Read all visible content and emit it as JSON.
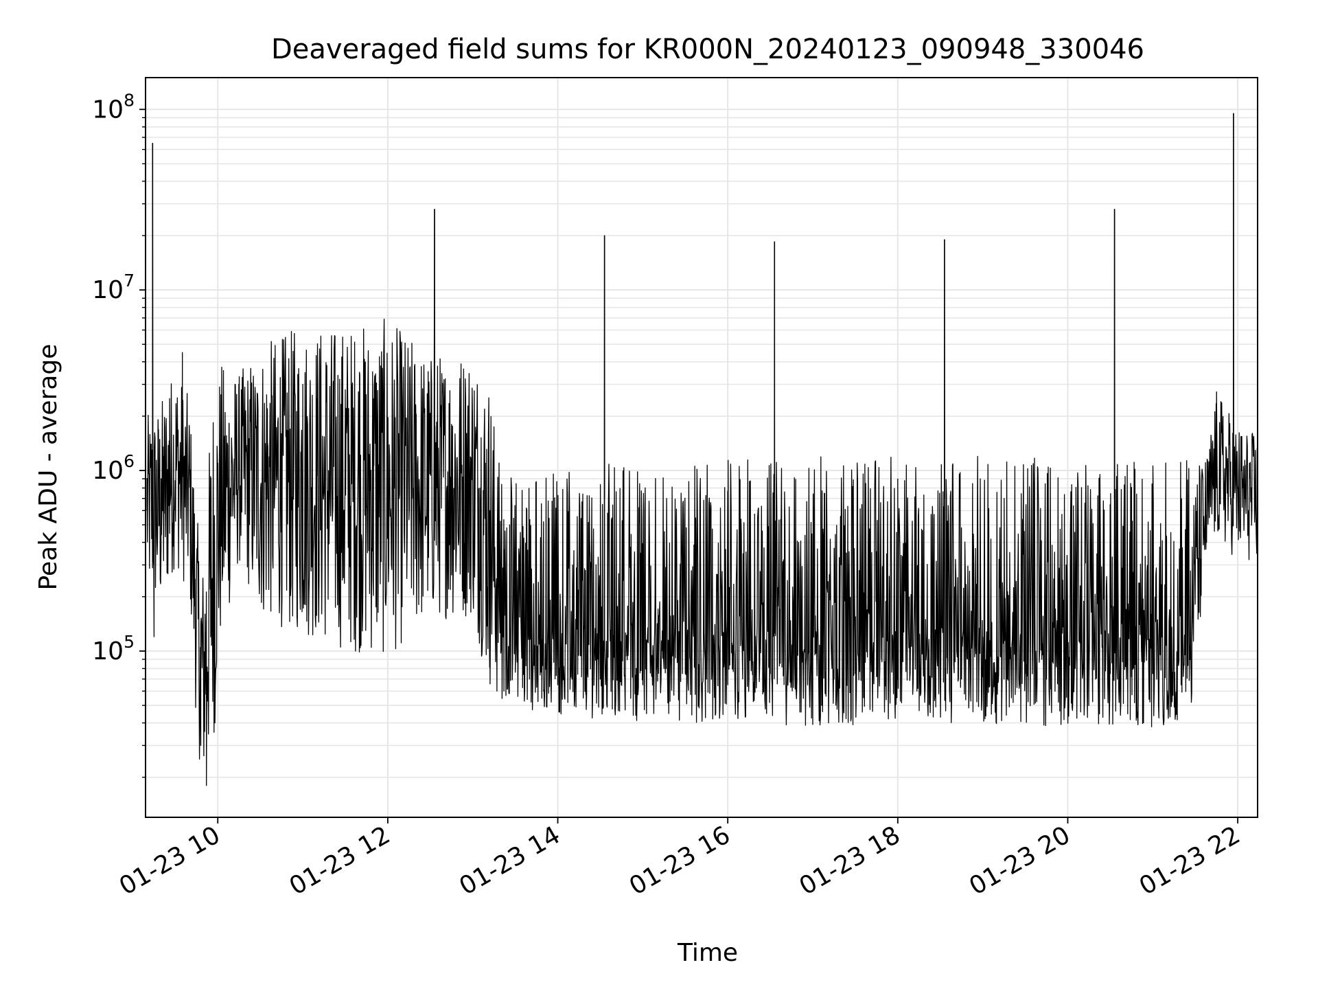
{
  "chart_data": {
    "type": "line",
    "title": "Deaveraged field sums for KR000N_20240123_090948_330046",
    "xlabel": "Time",
    "ylabel": "Peak ADU - average",
    "x_scale": "time",
    "y_scale": "log",
    "xlim": [
      "2024-01-23 09:09",
      "2024-01-23 22:14"
    ],
    "ylim": [
      12000,
      150000000
    ],
    "grid": true,
    "line_color": "#000000",
    "grid_color": "#e6e6e6",
    "x_ticks": [
      {
        "value": "2024-01-23 10:00",
        "label": "01-23 10"
      },
      {
        "value": "2024-01-23 12:00",
        "label": "01-23 12"
      },
      {
        "value": "2024-01-23 14:00",
        "label": "01-23 14"
      },
      {
        "value": "2024-01-23 16:00",
        "label": "01-23 16"
      },
      {
        "value": "2024-01-23 18:00",
        "label": "01-23 18"
      },
      {
        "value": "2024-01-23 20:00",
        "label": "01-23 20"
      },
      {
        "value": "2024-01-23 22:00",
        "label": "01-23 22"
      }
    ],
    "y_ticks": [
      {
        "value": 100000,
        "base": "10",
        "exp": "5"
      },
      {
        "value": 1000000,
        "base": "10",
        "exp": "6"
      },
      {
        "value": 10000000,
        "base": "10",
        "exp": "7"
      },
      {
        "value": 100000000,
        "base": "10",
        "exp": "8"
      }
    ],
    "series": [
      {
        "x": [
          "2024-01-23 09:10",
          "2024-01-23 09:13",
          "2024-01-23 09:14",
          "2024-01-23 09:15",
          "2024-01-23 09:18",
          "2024-01-23 09:20",
          "2024-01-23 09:22",
          "2024-01-23 09:26",
          "2024-01-23 09:30",
          "2024-01-23 09:35",
          "2024-01-23 09:40",
          "2024-01-23 09:44",
          "2024-01-23 09:48",
          "2024-01-23 09:52",
          "2024-01-23 09:55",
          "2024-01-23 09:58",
          "2024-01-23 10:02",
          "2024-01-23 10:08",
          "2024-01-23 10:15",
          "2024-01-23 10:25",
          "2024-01-23 10:35",
          "2024-01-23 10:45",
          "2024-01-23 11:00",
          "2024-01-23 11:10",
          "2024-01-23 11:20",
          "2024-01-23 11:30",
          "2024-01-23 11:40",
          "2024-01-23 11:50",
          "2024-01-23 12:00",
          "2024-01-23 12:10",
          "2024-01-23 12:20",
          "2024-01-23 12:30",
          "2024-01-23 12:33",
          "2024-01-23 12:35",
          "2024-01-23 12:45",
          "2024-01-23 12:55",
          "2024-01-23 13:05",
          "2024-01-23 13:12",
          "2024-01-23 13:18",
          "2024-01-23 13:22",
          "2024-01-23 13:26",
          "2024-01-23 13:32",
          "2024-01-23 13:40",
          "2024-01-23 13:50",
          "2024-01-23 14:00",
          "2024-01-23 14:10",
          "2024-01-23 14:20",
          "2024-01-23 14:30",
          "2024-01-23 14:33",
          "2024-01-23 14:35",
          "2024-01-23 14:45",
          "2024-01-23 15:00",
          "2024-01-23 15:15",
          "2024-01-23 15:30",
          "2024-01-23 15:45",
          "2024-01-23 16:00",
          "2024-01-23 16:15",
          "2024-01-23 16:30",
          "2024-01-23 16:33",
          "2024-01-23 16:35",
          "2024-01-23 16:45",
          "2024-01-23 17:00",
          "2024-01-23 17:15",
          "2024-01-23 17:30",
          "2024-01-23 17:45",
          "2024-01-23 18:00",
          "2024-01-23 18:15",
          "2024-01-23 18:30",
          "2024-01-23 18:33",
          "2024-01-23 18:35",
          "2024-01-23 18:45",
          "2024-01-23 19:00",
          "2024-01-23 19:15",
          "2024-01-23 19:30",
          "2024-01-23 19:45",
          "2024-01-23 20:00",
          "2024-01-23 20:15",
          "2024-01-23 20:30",
          "2024-01-23 20:33",
          "2024-01-23 20:35",
          "2024-01-23 20:45",
          "2024-01-23 21:00",
          "2024-01-23 21:10",
          "2024-01-23 21:20",
          "2024-01-23 21:27",
          "2024-01-23 21:32",
          "2024-01-23 21:38",
          "2024-01-23 21:45",
          "2024-01-23 21:50",
          "2024-01-23 21:55",
          "2024-01-23 21:57",
          "2024-01-23 22:00",
          "2024-01-23 22:05",
          "2024-01-23 22:10",
          "2024-01-23 22:14"
        ],
        "values": [
          600000,
          1400000,
          65000000,
          120000,
          1500000,
          900000,
          1200000,
          2500000,
          800000,
          4500000,
          1500000,
          250000,
          30000,
          18000,
          120000,
          40000,
          800000,
          1800000,
          1000000,
          1500000,
          2200000,
          1600000,
          3000000,
          2500000,
          2000000,
          2800000,
          3500000,
          2500000,
          1500000,
          2200000,
          1500000,
          2000000,
          28000000,
          800000,
          1800000,
          2500000,
          800000,
          600000,
          150000,
          60000,
          500000,
          90000,
          70000,
          60000,
          65000,
          70000,
          80000,
          70000,
          20000000,
          75000,
          70000,
          65000,
          80000,
          75000,
          70000,
          65000,
          70000,
          75000,
          18500000,
          70000,
          80000,
          75000,
          70000,
          75000,
          72000,
          70000,
          75000,
          72000,
          19000000,
          75000,
          70000,
          72000,
          70000,
          75000,
          70000,
          72000,
          70000,
          75000,
          28000000,
          70000,
          72000,
          75000,
          70000,
          65000,
          80000,
          150000,
          400000,
          800000,
          700000,
          650000,
          95000000,
          800000,
          700000,
          600000,
          500000
        ],
        "envelope": {
          "x": [
            "2024-01-23 09:10",
            "2024-01-23 09:20",
            "2024-01-23 09:30",
            "2024-01-23 09:40",
            "2024-01-23 09:46",
            "2024-01-23 09:50",
            "2024-01-23 09:56",
            "2024-01-23 10:02",
            "2024-01-23 10:15",
            "2024-01-23 10:30",
            "2024-01-23 11:00",
            "2024-01-23 11:30",
            "2024-01-23 12:00",
            "2024-01-23 12:30",
            "2024-01-23 13:00",
            "2024-01-23 13:12",
            "2024-01-23 13:18",
            "2024-01-23 13:24",
            "2024-01-23 13:32",
            "2024-01-23 13:50",
            "2024-01-23 14:30",
            "2024-01-23 15:00",
            "2024-01-23 16:00",
            "2024-01-23 17:00",
            "2024-01-23 18:00",
            "2024-01-23 19:00",
            "2024-01-23 20:00",
            "2024-01-23 21:00",
            "2024-01-23 21:20",
            "2024-01-23 21:27",
            "2024-01-23 21:32",
            "2024-01-23 21:38",
            "2024-01-23 21:45",
            "2024-01-23 22:00",
            "2024-01-23 22:14"
          ],
          "low": [
            200000,
            150000,
            300000,
            200000,
            28000,
            18000,
            25000,
            100000,
            300000,
            150000,
            120000,
            100000,
            90000,
            150000,
            150000,
            60000,
            50000,
            55000,
            50000,
            45000,
            42000,
            40000,
            38000,
            38000,
            40000,
            40000,
            38000,
            38000,
            40000,
            50000,
            100000,
            300000,
            400000,
            320000,
            300000
          ],
          "high": [
            2000000,
            2500000,
            4000000,
            2500000,
            500000,
            300000,
            3000000,
            4000000,
            3500000,
            5000000,
            6500000,
            6500000,
            7000000,
            4500000,
            5000000,
            3500000,
            1200000,
            1000000,
            900000,
            1000000,
            1100000,
            1150000,
            1200000,
            1200000,
            1200000,
            1200000,
            1200000,
            1150000,
            1150000,
            1150000,
            1100000,
            1200000,
            2800000,
            1800000,
            1600000
          ]
        }
      }
    ]
  }
}
